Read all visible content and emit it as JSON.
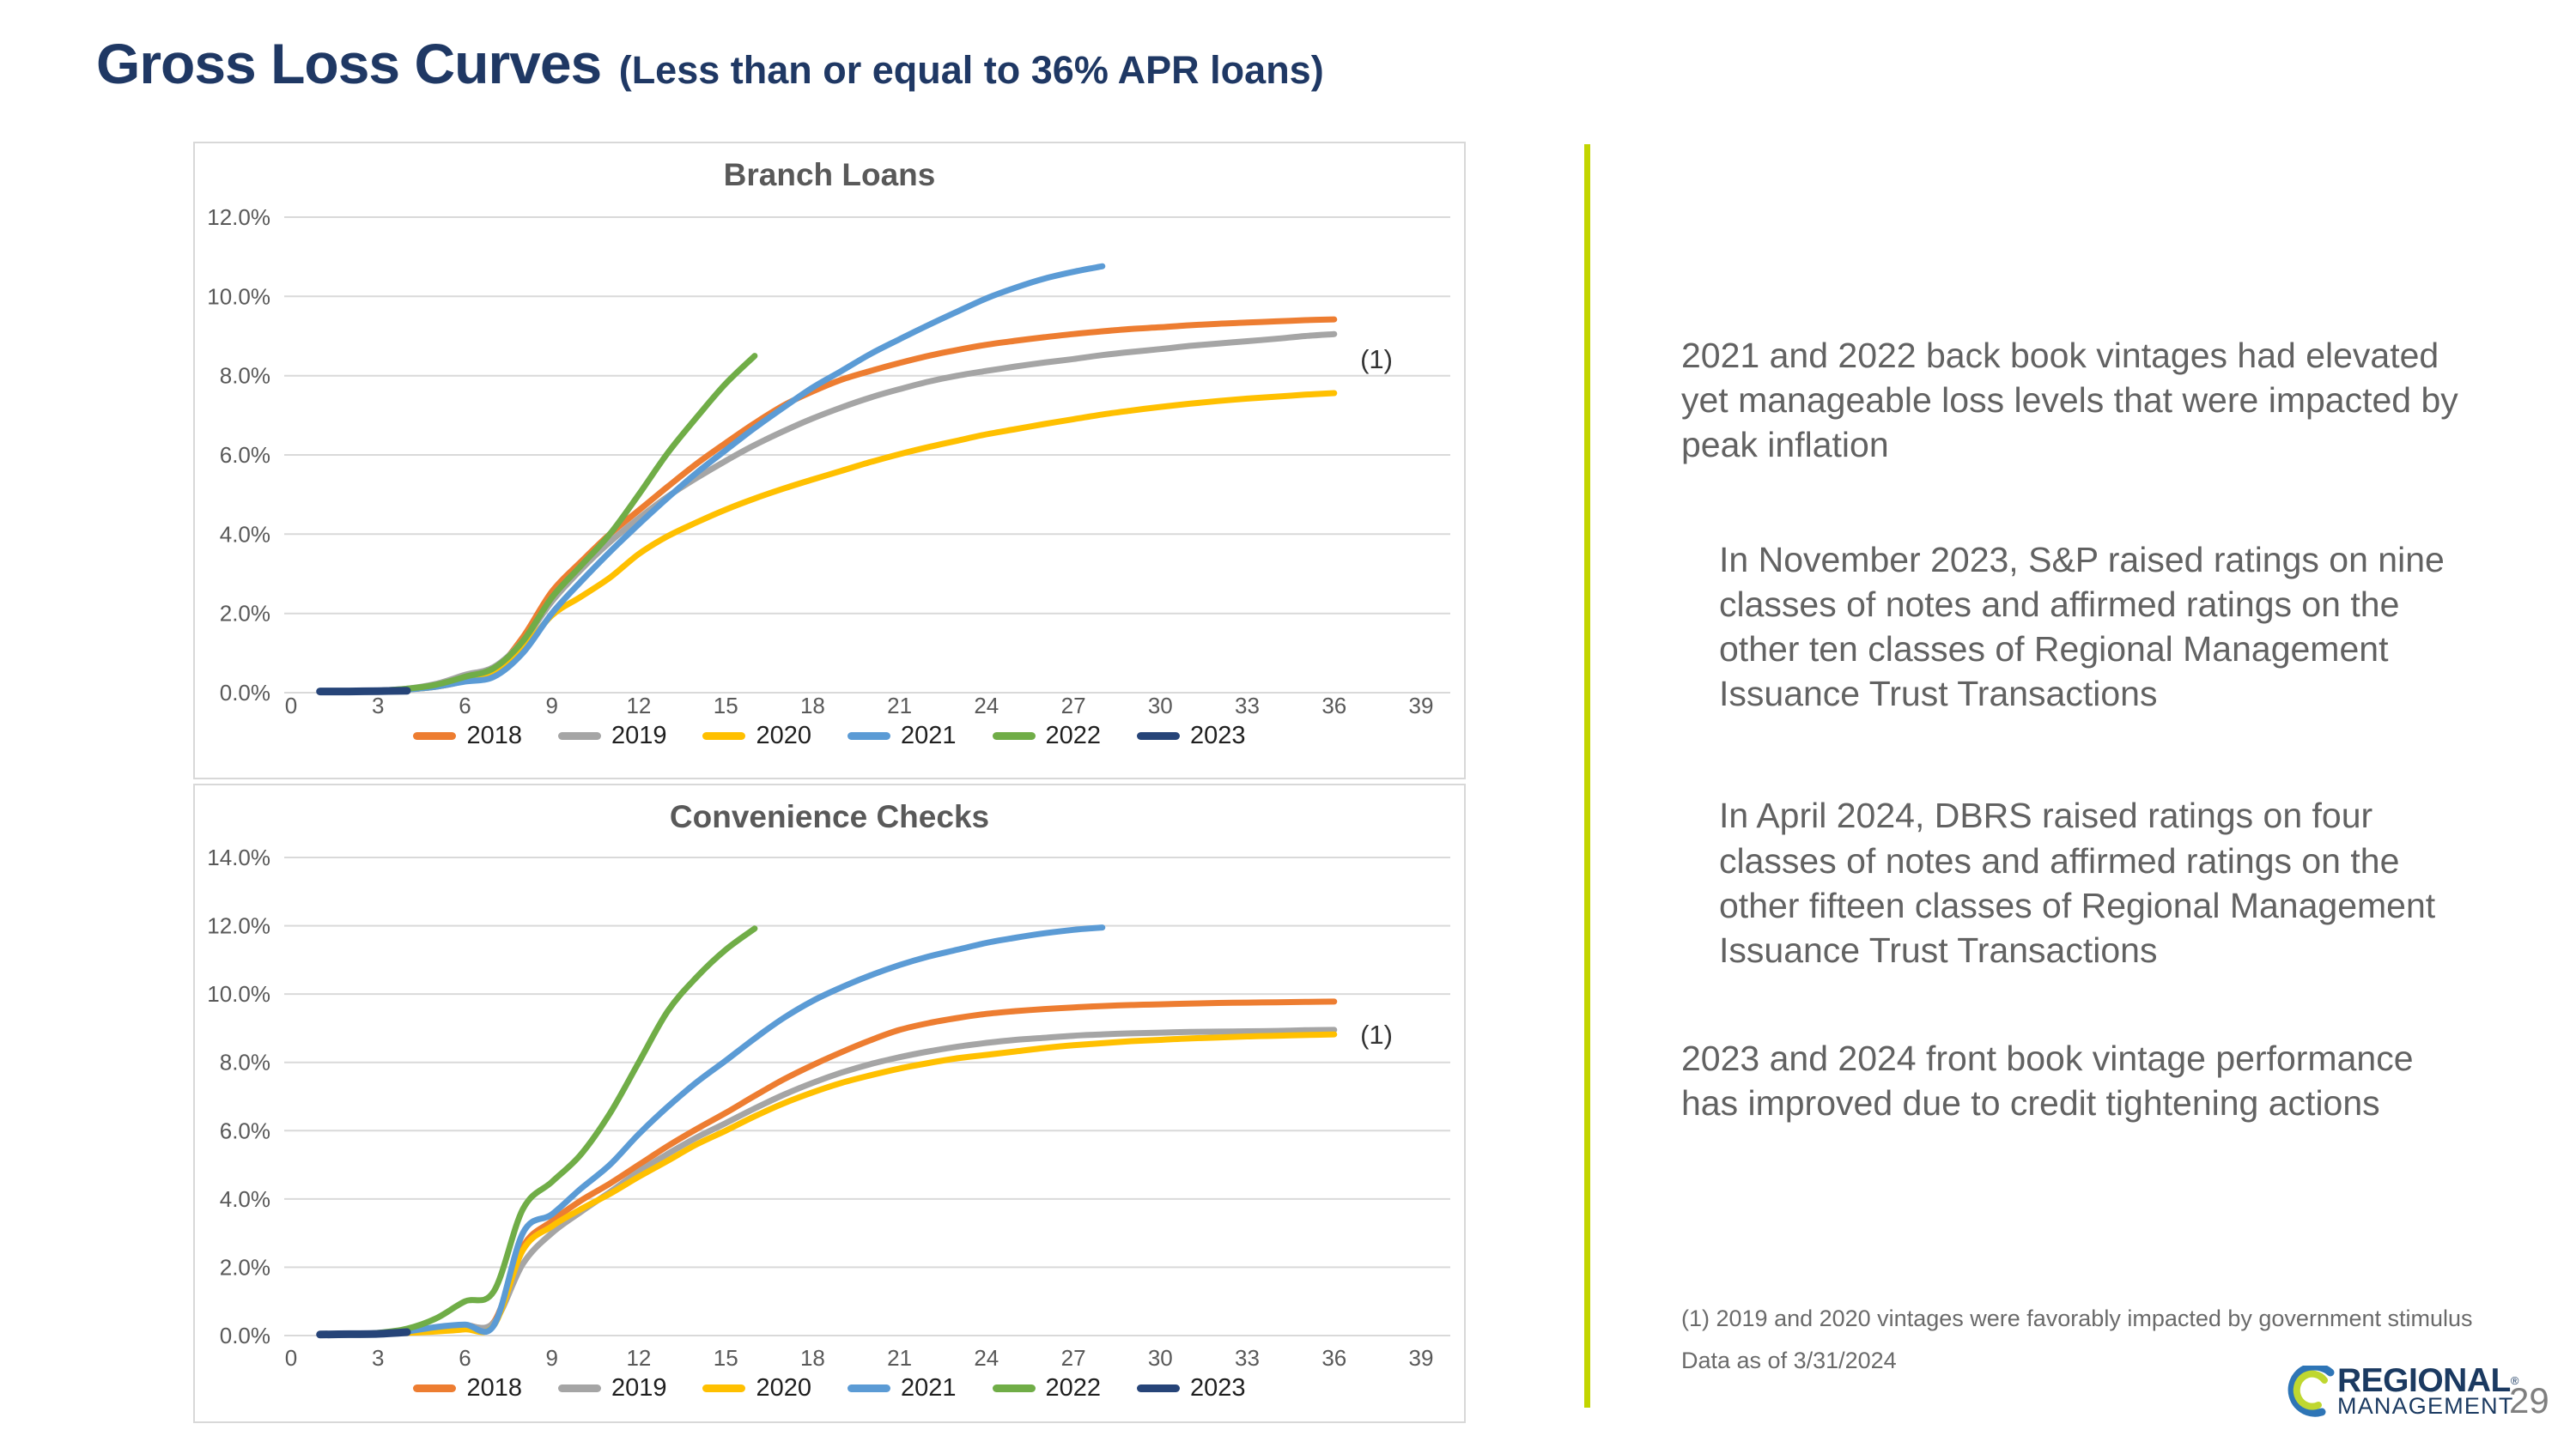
{
  "slide": {
    "title": "Gross Loss Curves",
    "subtitle": "(Less than or equal to 36% APR loans)",
    "title_color": "#1F3864",
    "divider_color": "#C2D500",
    "page_number": "29"
  },
  "right_panel": {
    "paragraphs": [
      {
        "text": "2021 and 2022 back book vintages had elevated yet manageable loss levels that were impacted by peak inflation",
        "indent": false
      },
      {
        "text": "In November 2023, S&P raised ratings on nine classes of notes and affirmed ratings on the other ten classes of Regional Management Issuance Trust Transactions",
        "indent": true
      },
      {
        "text": "In April 2024, DBRS raised ratings on four classes of notes and affirmed ratings on the other fifteen classes of Regional Management Issuance Trust Transactions",
        "indent": true
      },
      {
        "text": "2023 and 2024 front book vintage performance has improved due to credit tightening actions",
        "indent": false
      }
    ],
    "footnote": "(1)   2019 and 2020 vintages were favorably impacted by government stimulus",
    "data_as_of": "Data as of 3/31/2024"
  },
  "logo": {
    "line1": "REGIONAL",
    "registered": "®",
    "line2": "MANAGEMENT",
    "navy": "#1B3A61",
    "swoosh_blue": "#2E75B6",
    "swoosh_green": "#BFD730"
  },
  "chart_data": [
    {
      "type": "line",
      "title": "Branch Loans",
      "xlabel": "",
      "ylabel": "",
      "grid": true,
      "legend_position": "bottom",
      "x_axis": {
        "min": 0,
        "max": 39,
        "tick_step": 3,
        "ticks": [
          0,
          3,
          6,
          9,
          12,
          15,
          18,
          21,
          24,
          27,
          30,
          33,
          36,
          39
        ]
      },
      "y_axis": {
        "min": 0,
        "max": 12,
        "tick_step": 2,
        "tick_labels": [
          "0.0%",
          "2.0%",
          "4.0%",
          "6.0%",
          "8.0%",
          "10.0%",
          "12.0%"
        ]
      },
      "annotation": {
        "label": "(1)",
        "x": 36.9,
        "y": 8.4
      },
      "series": [
        {
          "name": "2018",
          "color": "#ED7D31",
          "start_month": 1,
          "values": [
            0.02,
            0.03,
            0.05,
            0.08,
            0.15,
            0.3,
            0.55,
            1.4,
            2.55,
            3.3,
            4.0,
            4.6,
            5.2,
            5.78,
            6.3,
            6.8,
            7.25,
            7.6,
            7.9,
            8.12,
            8.32,
            8.5,
            8.65,
            8.78,
            8.88,
            8.97,
            9.05,
            9.12,
            9.18,
            9.22,
            9.27,
            9.31,
            9.34,
            9.37,
            9.4,
            9.42
          ]
        },
        {
          "name": "2019",
          "color": "#A5A5A5",
          "start_month": 1,
          "values": [
            0.02,
            0.03,
            0.05,
            0.1,
            0.22,
            0.45,
            0.65,
            1.3,
            2.3,
            3.1,
            3.8,
            4.4,
            4.95,
            5.42,
            5.85,
            6.25,
            6.6,
            6.92,
            7.2,
            7.45,
            7.66,
            7.85,
            8.0,
            8.12,
            8.23,
            8.33,
            8.42,
            8.52,
            8.6,
            8.67,
            8.75,
            8.81,
            8.87,
            8.93,
            9.0,
            9.05
          ]
        },
        {
          "name": "2020",
          "color": "#FFC000",
          "start_month": 1,
          "values": [
            0.02,
            0.03,
            0.05,
            0.08,
            0.15,
            0.3,
            0.5,
            1.1,
            1.95,
            2.42,
            2.9,
            3.5,
            3.95,
            4.3,
            4.62,
            4.9,
            5.15,
            5.38,
            5.6,
            5.82,
            6.02,
            6.2,
            6.36,
            6.52,
            6.65,
            6.78,
            6.9,
            7.02,
            7.12,
            7.21,
            7.29,
            7.36,
            7.42,
            7.47,
            7.52,
            7.56
          ]
        },
        {
          "name": "2021",
          "color": "#5B9BD5",
          "start_month": 1,
          "values": [
            0.02,
            0.03,
            0.05,
            0.08,
            0.15,
            0.28,
            0.4,
            1.0,
            2.0,
            2.8,
            3.55,
            4.25,
            4.92,
            5.55,
            6.12,
            6.68,
            7.2,
            7.7,
            8.12,
            8.55,
            8.92,
            9.28,
            9.62,
            9.95,
            10.22,
            10.45,
            10.62,
            10.76
          ]
        },
        {
          "name": "2022",
          "color": "#70AD47",
          "start_month": 1,
          "values": [
            0.02,
            0.03,
            0.05,
            0.1,
            0.2,
            0.4,
            0.62,
            1.3,
            2.4,
            3.2,
            4.0,
            5.0,
            6.05,
            6.95,
            7.8,
            8.5
          ]
        },
        {
          "name": "2023",
          "color": "#264478",
          "start_month": 1,
          "values": [
            0.03,
            0.03,
            0.04,
            0.05
          ]
        }
      ]
    },
    {
      "type": "line",
      "title": "Convenience Checks",
      "xlabel": "",
      "ylabel": "",
      "grid": true,
      "legend_position": "bottom",
      "x_axis": {
        "min": 0,
        "max": 39,
        "tick_step": 3,
        "ticks": [
          0,
          3,
          6,
          9,
          12,
          15,
          18,
          21,
          24,
          27,
          30,
          33,
          36,
          39
        ]
      },
      "y_axis": {
        "min": 0,
        "max": 14,
        "tick_step": 2,
        "tick_labels": [
          "0.0%",
          "2.0%",
          "4.0%",
          "6.0%",
          "8.0%",
          "10.0%",
          "12.0%",
          "14.0%"
        ]
      },
      "annotation": {
        "label": "(1)",
        "x": 36.9,
        "y": 8.8
      },
      "series": [
        {
          "name": "2018",
          "color": "#ED7D31",
          "start_month": 1,
          "values": [
            0.02,
            0.03,
            0.06,
            0.1,
            0.2,
            0.3,
            0.4,
            2.6,
            3.35,
            3.95,
            4.45,
            5.0,
            5.55,
            6.05,
            6.52,
            7.02,
            7.5,
            7.92,
            8.3,
            8.65,
            8.95,
            9.15,
            9.3,
            9.42,
            9.5,
            9.56,
            9.61,
            9.65,
            9.68,
            9.7,
            9.72,
            9.74,
            9.75,
            9.76,
            9.77,
            9.78
          ]
        },
        {
          "name": "2019",
          "color": "#A5A5A5",
          "start_month": 1,
          "values": [
            0.02,
            0.03,
            0.05,
            0.1,
            0.18,
            0.28,
            0.38,
            2.1,
            3.0,
            3.62,
            4.2,
            4.8,
            5.32,
            5.8,
            6.22,
            6.65,
            7.05,
            7.4,
            7.7,
            7.95,
            8.15,
            8.32,
            8.46,
            8.57,
            8.66,
            8.72,
            8.78,
            8.82,
            8.85,
            8.87,
            8.89,
            8.9,
            8.91,
            8.92,
            8.94,
            8.95
          ]
        },
        {
          "name": "2020",
          "color": "#FFC000",
          "start_month": 1,
          "values": [
            0.02,
            0.03,
            0.05,
            0.08,
            0.12,
            0.18,
            0.3,
            2.5,
            3.2,
            3.7,
            4.15,
            4.65,
            5.12,
            5.6,
            6.0,
            6.42,
            6.8,
            7.12,
            7.4,
            7.62,
            7.82,
            7.98,
            8.12,
            8.22,
            8.32,
            8.42,
            8.5,
            8.56,
            8.62,
            8.66,
            8.7,
            8.73,
            8.76,
            8.78,
            8.8,
            8.82
          ]
        },
        {
          "name": "2021",
          "color": "#5B9BD5",
          "start_month": 1,
          "values": [
            0.02,
            0.03,
            0.06,
            0.12,
            0.25,
            0.32,
            0.3,
            3.0,
            3.55,
            4.3,
            5.0,
            5.9,
            6.7,
            7.42,
            8.05,
            8.7,
            9.3,
            9.8,
            10.2,
            10.55,
            10.85,
            11.1,
            11.3,
            11.5,
            11.65,
            11.78,
            11.88,
            11.95
          ]
        },
        {
          "name": "2022",
          "color": "#70AD47",
          "start_month": 1,
          "values": [
            0.02,
            0.04,
            0.08,
            0.2,
            0.5,
            1.0,
            1.3,
            3.7,
            4.5,
            5.3,
            6.5,
            8.0,
            9.5,
            10.5,
            11.3,
            11.92
          ]
        },
        {
          "name": "2023",
          "color": "#264478",
          "start_month": 1,
          "values": [
            0.03,
            0.04,
            0.05,
            0.1
          ]
        }
      ]
    }
  ]
}
